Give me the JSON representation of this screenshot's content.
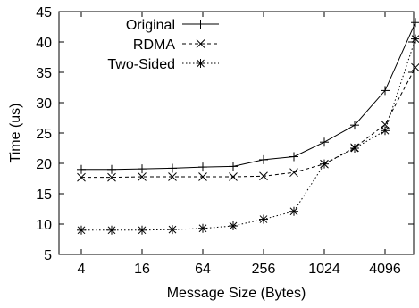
{
  "chart_data": {
    "type": "line",
    "title": "",
    "xlabel": "Message Size (Bytes)",
    "ylabel": "Time (us)",
    "x_scale": "log2",
    "x": [
      4,
      8,
      16,
      32,
      64,
      128,
      256,
      512,
      1024,
      2048,
      4096,
      8192
    ],
    "x_ticks": [
      4,
      16,
      64,
      256,
      1024,
      4096
    ],
    "x_tick_labels": [
      "4",
      "16",
      "64",
      "256",
      "1024",
      "4096"
    ],
    "ylim": [
      5,
      45
    ],
    "y_ticks": [
      5,
      10,
      15,
      20,
      25,
      30,
      35,
      40,
      45
    ],
    "y_tick_labels": [
      "5",
      "10",
      "15",
      "20",
      "25",
      "30",
      "35",
      "40",
      "45"
    ],
    "grid": false,
    "legend_position": "top-left",
    "series": [
      {
        "name": "Original",
        "marker": "plus",
        "line_style": "solid",
        "values": [
          19.0,
          19.0,
          19.1,
          19.2,
          19.4,
          19.5,
          20.6,
          21.1,
          23.5,
          26.3,
          32.0,
          43.2
        ]
      },
      {
        "name": "RDMA",
        "marker": "cross",
        "line_style": "dashed",
        "values": [
          17.7,
          17.7,
          17.8,
          17.8,
          17.8,
          17.8,
          17.9,
          18.5,
          19.9,
          22.6,
          26.4,
          35.8
        ]
      },
      {
        "name": "Two-Sided",
        "marker": "asterisk",
        "line_style": "dotted",
        "values": [
          9.0,
          9.0,
          9.0,
          9.1,
          9.3,
          9.7,
          10.8,
          12.1,
          19.9,
          22.5,
          25.4,
          40.5
        ]
      }
    ]
  }
}
